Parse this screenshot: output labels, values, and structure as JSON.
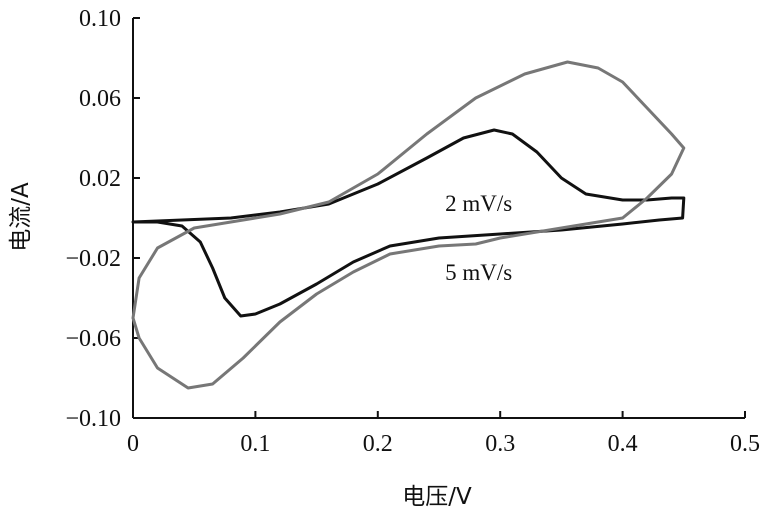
{
  "chart_data": {
    "type": "line",
    "title": "",
    "xlabel": "电压/V",
    "ylabel": "电流/A",
    "xlim": [
      0,
      0.5
    ],
    "ylim": [
      -0.1,
      0.1
    ],
    "grid": false,
    "x_ticks": [
      0,
      0.1,
      0.2,
      0.3,
      0.4,
      0.5
    ],
    "x_tick_labels": [
      "0",
      "0.1",
      "0.2",
      "0.3",
      "0.4",
      "0.5"
    ],
    "y_ticks": [
      -0.1,
      -0.06,
      -0.02,
      0.02,
      0.06,
      0.1
    ],
    "y_tick_labels": [
      "−0.10",
      "−0.06",
      "−0.02",
      "0.02",
      "0.06",
      "0.10"
    ],
    "series": [
      {
        "name": "2 mV/s",
        "color": "#111111",
        "points": [
          [
            0.0,
            -0.002
          ],
          [
            0.02,
            -0.002
          ],
          [
            0.04,
            -0.004
          ],
          [
            0.055,
            -0.012
          ],
          [
            0.065,
            -0.025
          ],
          [
            0.075,
            -0.04
          ],
          [
            0.088,
            -0.049
          ],
          [
            0.1,
            -0.048
          ],
          [
            0.12,
            -0.043
          ],
          [
            0.15,
            -0.033
          ],
          [
            0.18,
            -0.022
          ],
          [
            0.21,
            -0.014
          ],
          [
            0.25,
            -0.01
          ],
          [
            0.3,
            -0.008
          ],
          [
            0.35,
            -0.006
          ],
          [
            0.4,
            -0.003
          ],
          [
            0.43,
            -0.001
          ],
          [
            0.449,
            0.0
          ],
          [
            0.45,
            0.01
          ],
          [
            0.44,
            0.01
          ],
          [
            0.42,
            0.009
          ],
          [
            0.4,
            0.009
          ],
          [
            0.37,
            0.012
          ],
          [
            0.35,
            0.02
          ],
          [
            0.33,
            0.033
          ],
          [
            0.31,
            0.042
          ],
          [
            0.295,
            0.044
          ],
          [
            0.27,
            0.04
          ],
          [
            0.24,
            0.03
          ],
          [
            0.2,
            0.017
          ],
          [
            0.16,
            0.007
          ],
          [
            0.12,
            0.003
          ],
          [
            0.08,
            0.0
          ],
          [
            0.04,
            -0.001
          ],
          [
            0.0,
            -0.002
          ]
        ]
      },
      {
        "name": "5 mV/s",
        "color": "#777777",
        "points": [
          [
            0.0,
            -0.05
          ],
          [
            0.005,
            -0.06
          ],
          [
            0.02,
            -0.075
          ],
          [
            0.045,
            -0.085
          ],
          [
            0.065,
            -0.083
          ],
          [
            0.09,
            -0.07
          ],
          [
            0.12,
            -0.052
          ],
          [
            0.15,
            -0.038
          ],
          [
            0.18,
            -0.027
          ],
          [
            0.21,
            -0.018
          ],
          [
            0.25,
            -0.014
          ],
          [
            0.28,
            -0.013
          ],
          [
            0.3,
            -0.01
          ],
          [
            0.35,
            -0.005
          ],
          [
            0.4,
            0.0
          ],
          [
            0.42,
            0.01
          ],
          [
            0.44,
            0.022
          ],
          [
            0.45,
            0.035
          ],
          [
            0.44,
            0.042
          ],
          [
            0.42,
            0.055
          ],
          [
            0.4,
            0.068
          ],
          [
            0.38,
            0.075
          ],
          [
            0.355,
            0.078
          ],
          [
            0.32,
            0.072
          ],
          [
            0.28,
            0.06
          ],
          [
            0.24,
            0.042
          ],
          [
            0.2,
            0.022
          ],
          [
            0.16,
            0.008
          ],
          [
            0.12,
            0.002
          ],
          [
            0.08,
            -0.002
          ],
          [
            0.05,
            -0.005
          ],
          [
            0.02,
            -0.015
          ],
          [
            0.005,
            -0.03
          ],
          [
            0.0,
            -0.05
          ]
        ]
      }
    ],
    "annotations": [
      {
        "text": "2 mV/s",
        "x": 0.255,
        "y": 0.0035
      },
      {
        "text": "5 mV/s",
        "x": 0.255,
        "y": -0.031
      }
    ]
  }
}
